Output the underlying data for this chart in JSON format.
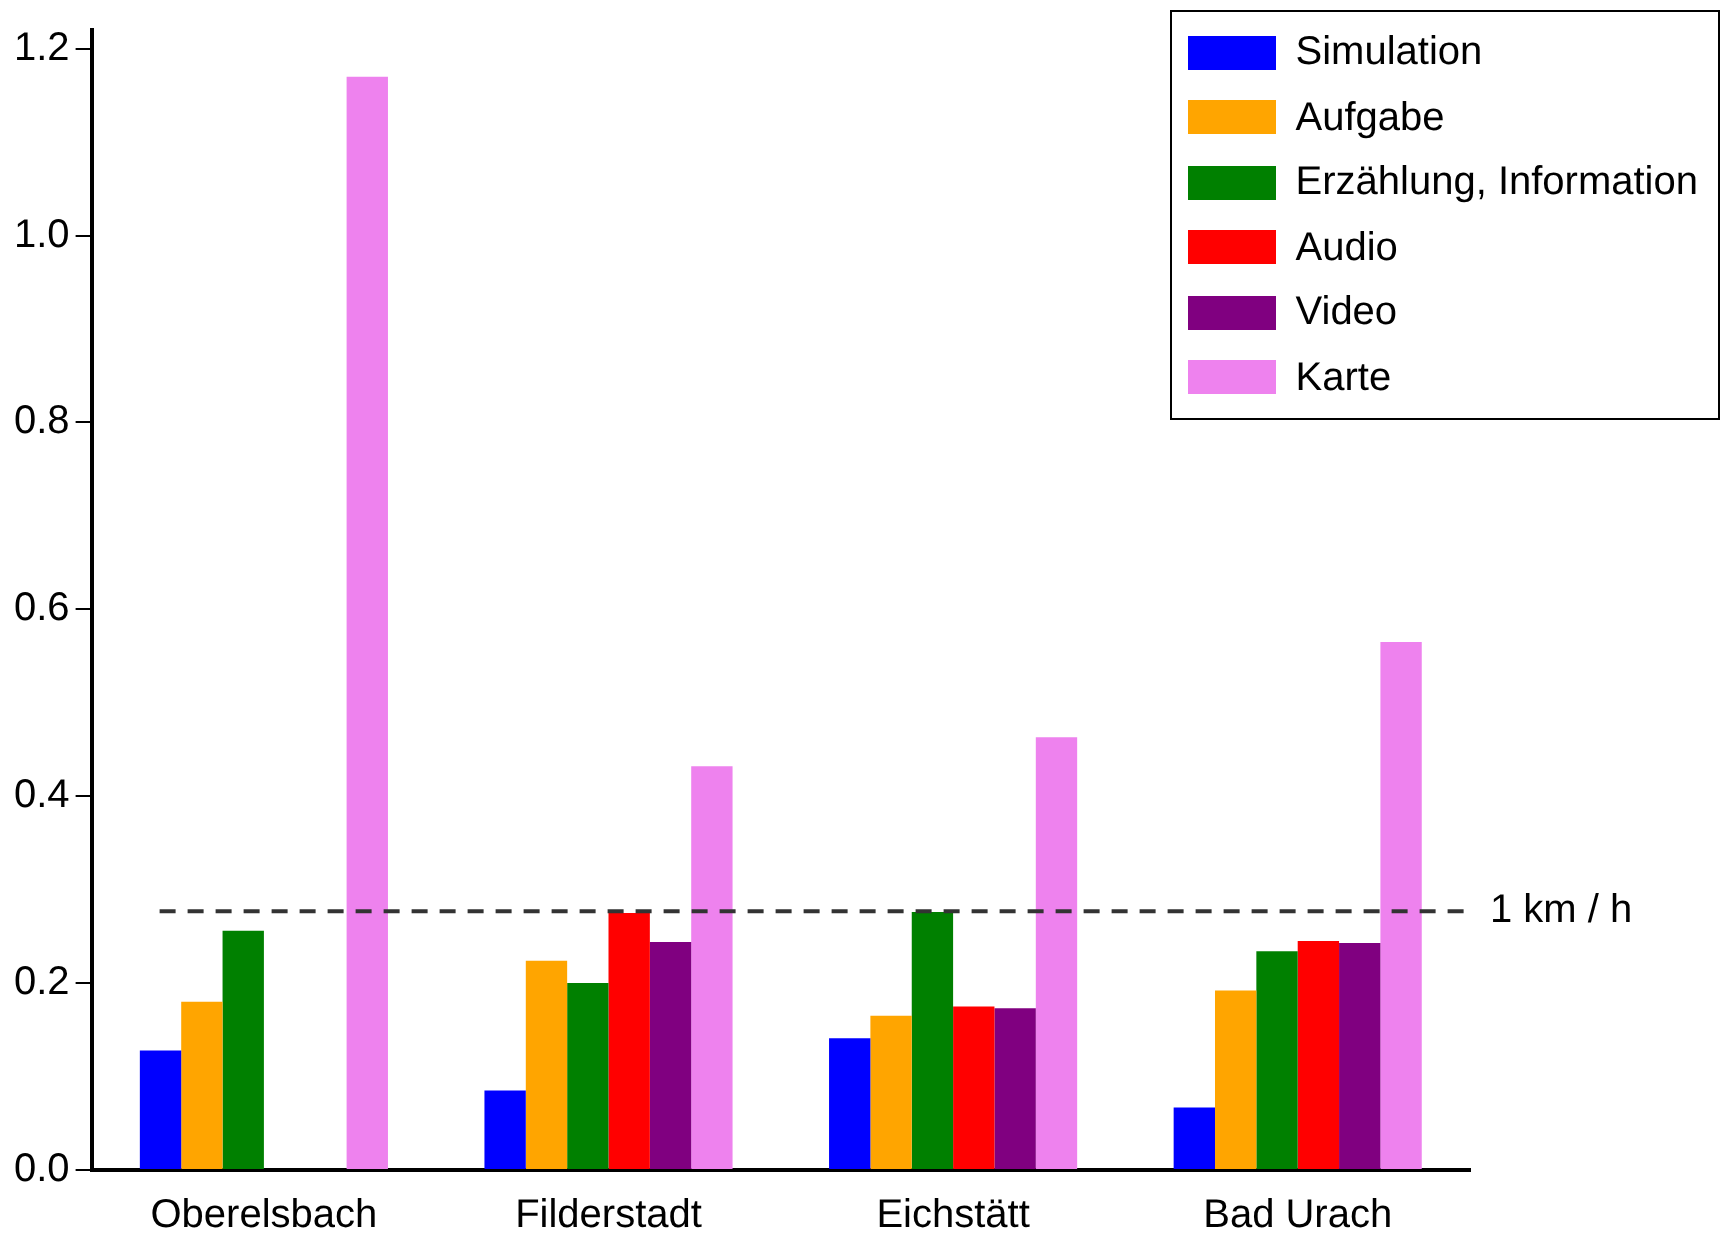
{
  "chart_data": {
    "type": "bar",
    "categories": [
      "Oberelsbach",
      "Filderstadt",
      "Eichstätt",
      "Bad Urach"
    ],
    "series": [
      {
        "name": "Simulation",
        "color": "#0000ff",
        "values": [
          0.128,
          0.085,
          0.141,
          0.067
        ]
      },
      {
        "name": "Aufgabe",
        "color": "#ffa500",
        "values": [
          0.18,
          0.224,
          0.165,
          0.192
        ]
      },
      {
        "name": "Erzählung, Information",
        "color": "#008000",
        "values": [
          0.256,
          0.2,
          0.276,
          0.234
        ]
      },
      {
        "name": "Audio",
        "color": "#ff0000",
        "values": [
          null,
          0.275,
          0.175,
          0.245
        ]
      },
      {
        "name": "Video",
        "color": "#800080",
        "values": [
          null,
          0.244,
          0.173,
          0.243
        ]
      },
      {
        "name": "Karte",
        "color": "#ee82ee",
        "values": [
          1.17,
          0.432,
          0.463,
          0.565
        ]
      }
    ],
    "ylim": [
      0,
      1.22
    ],
    "yticks": [
      {
        "value": 0,
        "label": "0.0"
      },
      {
        "value": 0.2,
        "label": "0.2"
      },
      {
        "value": 0.4,
        "label": "0.4"
      },
      {
        "value": 0.6,
        "label": "0.6"
      },
      {
        "value": 0.8,
        "label": "0.8"
      },
      {
        "value": 1.0,
        "label": "1.0"
      },
      {
        "value": 1.2,
        "label": "1.2"
      }
    ],
    "ref_lines": [
      {
        "axis": "y",
        "value": 0.277,
        "label": "1 km / h",
        "color": "#333333",
        "line_style": "dashed"
      }
    ],
    "grid": false,
    "legend": "top right"
  }
}
